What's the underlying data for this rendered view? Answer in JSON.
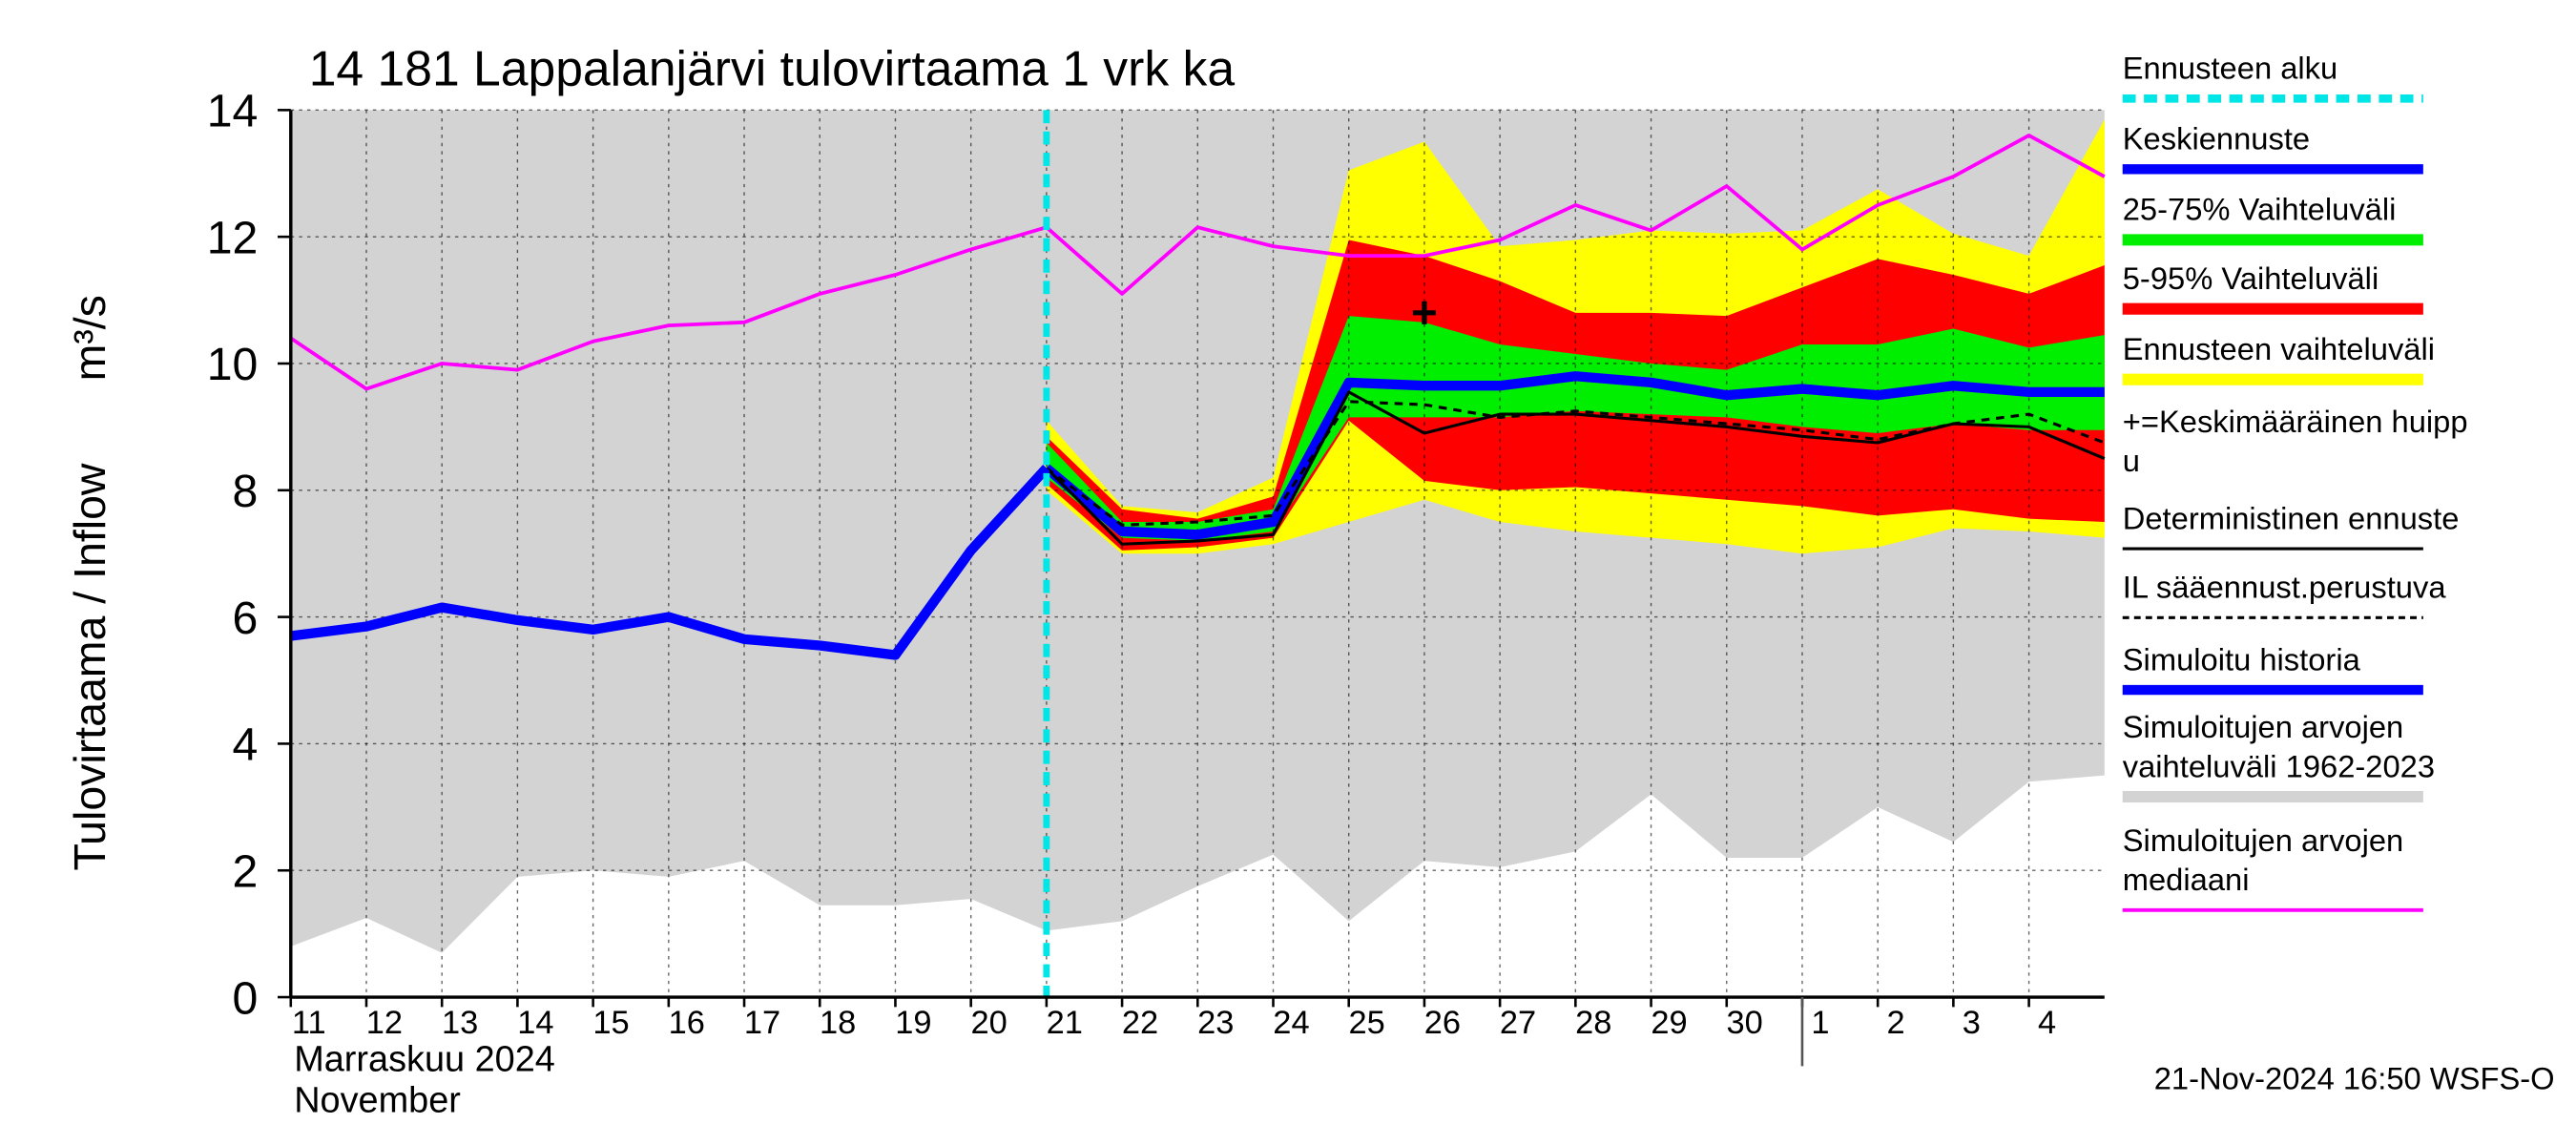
{
  "chart_data": {
    "type": "band-forecast",
    "title": "14 181 Lappalanjärvi tulovirtaama 1 vrk ka",
    "y_label": "Tulovirtaama / Inflow",
    "y_unit": "m³/s",
    "month_labels": [
      "Marraskuu 2024",
      "November"
    ],
    "month_boundary": 20,
    "timestamp": "21-Nov-2024 16:50 WSFS-O",
    "x": [
      0,
      1,
      2,
      3,
      4,
      5,
      6,
      7,
      8,
      9,
      10,
      11,
      12,
      13,
      14,
      15,
      16,
      17,
      18,
      19,
      20,
      21,
      22,
      23,
      24
    ],
    "xlim": [
      0,
      24
    ],
    "xticks": [
      {
        "value": 0,
        "label": "11"
      },
      {
        "value": 1,
        "label": "12"
      },
      {
        "value": 2,
        "label": "13"
      },
      {
        "value": 3,
        "label": "14"
      },
      {
        "value": 4,
        "label": "15"
      },
      {
        "value": 5,
        "label": "16"
      },
      {
        "value": 6,
        "label": "17"
      },
      {
        "value": 7,
        "label": "18"
      },
      {
        "value": 8,
        "label": "19"
      },
      {
        "value": 9,
        "label": "20"
      },
      {
        "value": 10,
        "label": "21"
      },
      {
        "value": 11,
        "label": "22"
      },
      {
        "value": 12,
        "label": "23"
      },
      {
        "value": 13,
        "label": "24"
      },
      {
        "value": 14,
        "label": "25"
      },
      {
        "value": 15,
        "label": "26"
      },
      {
        "value": 16,
        "label": "27"
      },
      {
        "value": 17,
        "label": "28"
      },
      {
        "value": 18,
        "label": "29"
      },
      {
        "value": 19,
        "label": "30"
      },
      {
        "value": 20,
        "label": "1"
      },
      {
        "value": 21,
        "label": "2"
      },
      {
        "value": 22,
        "label": "3"
      },
      {
        "value": 23,
        "label": "4"
      }
    ],
    "ylim": [
      0,
      14
    ],
    "yticks": [
      0,
      2,
      4,
      6,
      8,
      10,
      12,
      14
    ],
    "grid": true,
    "series": [
      {
        "name": [
          "Ennusteen alku"
        ],
        "style": "vline",
        "color": "#00e5e5",
        "x": 10
      },
      {
        "name": [
          "Keskiennuste"
        ],
        "style": "thick",
        "color": "#0000ff",
        "values": [
          null,
          null,
          null,
          null,
          null,
          null,
          null,
          null,
          null,
          null,
          8.35,
          7.35,
          7.3,
          7.5,
          9.7,
          9.65,
          9.65,
          9.8,
          9.7,
          9.5,
          9.6,
          9.5,
          9.65,
          9.55,
          9.55
        ]
      },
      {
        "name": [
          "25-75% Vaihteluväli"
        ],
        "style": "band",
        "color": "#00ee00",
        "upper": [
          null,
          null,
          null,
          null,
          null,
          null,
          null,
          null,
          null,
          null,
          8.75,
          7.5,
          7.5,
          7.7,
          10.75,
          10.65,
          10.3,
          10.15,
          10.0,
          9.9,
          10.3,
          10.3,
          10.55,
          10.25,
          10.45
        ],
        "lower": [
          null,
          null,
          null,
          null,
          null,
          null,
          null,
          null,
          null,
          null,
          8.2,
          7.25,
          7.2,
          7.35,
          9.15,
          9.15,
          9.15,
          9.25,
          9.2,
          9.15,
          9.0,
          8.9,
          9.05,
          8.95,
          8.95
        ]
      },
      {
        "name": [
          "5-95% Vaihteluväli"
        ],
        "style": "band",
        "color": "#ff0000",
        "upper": [
          null,
          null,
          null,
          null,
          null,
          null,
          null,
          null,
          null,
          null,
          8.85,
          7.7,
          7.55,
          7.9,
          11.95,
          11.7,
          11.3,
          10.8,
          10.8,
          10.75,
          11.2,
          11.65,
          11.4,
          11.1,
          11.55
        ],
        "lower": [
          null,
          null,
          null,
          null,
          null,
          null,
          null,
          null,
          null,
          null,
          8.1,
          7.05,
          7.1,
          7.25,
          9.1,
          8.15,
          8.0,
          8.05,
          7.95,
          7.85,
          7.75,
          7.6,
          7.7,
          7.55,
          7.5
        ]
      },
      {
        "name": [
          "Ennusteen vaihteluväli"
        ],
        "style": "band",
        "color": "#ffff00",
        "upper": [
          null,
          null,
          null,
          null,
          null,
          null,
          null,
          null,
          null,
          null,
          9.1,
          7.75,
          7.65,
          8.2,
          13.05,
          13.5,
          11.85,
          11.95,
          12.1,
          12.05,
          12.1,
          12.75,
          12.05,
          11.7,
          13.85
        ],
        "lower": [
          null,
          null,
          null,
          null,
          null,
          null,
          null,
          null,
          null,
          null,
          8.0,
          7.0,
          7.0,
          7.15,
          7.5,
          7.85,
          7.5,
          7.35,
          7.25,
          7.15,
          7.0,
          7.1,
          7.4,
          7.35,
          7.25
        ]
      },
      {
        "name": [
          "+=Keskimääräinen huipp",
          "u"
        ],
        "style": "marker",
        "color": "#000000",
        "x": 15,
        "value": 10.8
      },
      {
        "name": [
          "Deterministinen ennuste"
        ],
        "style": "thin",
        "color": "#000000",
        "values": [
          null,
          null,
          null,
          null,
          null,
          null,
          null,
          null,
          null,
          null,
          8.35,
          7.15,
          7.2,
          7.3,
          9.55,
          8.9,
          9.2,
          9.2,
          9.1,
          9.0,
          8.85,
          8.75,
          9.05,
          9.0,
          8.5
        ]
      },
      {
        "name": [
          "IL sääennust.perustuva"
        ],
        "style": "dashed",
        "color": "#000000",
        "values": [
          null,
          null,
          null,
          null,
          null,
          null,
          null,
          null,
          null,
          null,
          8.35,
          7.45,
          7.5,
          7.6,
          9.4,
          9.35,
          9.15,
          9.25,
          9.15,
          9.05,
          8.95,
          8.8,
          9.05,
          9.2,
          8.75
        ]
      },
      {
        "name": [
          "Simuloitu historia"
        ],
        "style": "thick",
        "color": "#0000ff",
        "values": [
          5.7,
          5.85,
          6.15,
          5.95,
          5.8,
          6.0,
          5.65,
          5.55,
          5.4,
          7.05,
          8.35,
          null,
          null,
          null,
          null,
          null,
          null,
          null,
          null,
          null,
          null,
          null,
          null,
          null,
          null
        ]
      },
      {
        "name": [
          "Simuloitujen arvojen",
          "vaihteluväli 1962-2023"
        ],
        "style": "band",
        "color": "#d3d3d3",
        "upper": [
          14,
          14,
          14,
          14,
          14,
          14,
          14,
          14,
          14,
          14,
          14,
          14,
          14,
          14,
          14,
          14,
          14,
          14,
          14,
          14,
          14,
          14,
          14,
          14,
          14
        ],
        "lower": [
          0.8,
          1.25,
          0.7,
          1.9,
          2.0,
          1.9,
          2.15,
          1.45,
          1.45,
          1.55,
          1.05,
          1.2,
          1.75,
          2.25,
          1.2,
          2.15,
          2.05,
          2.3,
          3.2,
          2.2,
          2.2,
          3.0,
          2.45,
          3.4,
          3.5
        ]
      },
      {
        "name": [
          "Simuloitujen arvojen",
          "mediaani"
        ],
        "style": "median",
        "color": "#ff00ff",
        "values": [
          10.4,
          9.6,
          10.0,
          9.9,
          10.35,
          10.6,
          10.65,
          11.1,
          11.4,
          11.8,
          12.15,
          11.1,
          12.15,
          11.85,
          11.7,
          11.7,
          11.95,
          12.5,
          12.1,
          12.8,
          11.8,
          12.5,
          12.95,
          13.6,
          12.95
        ]
      }
    ]
  }
}
